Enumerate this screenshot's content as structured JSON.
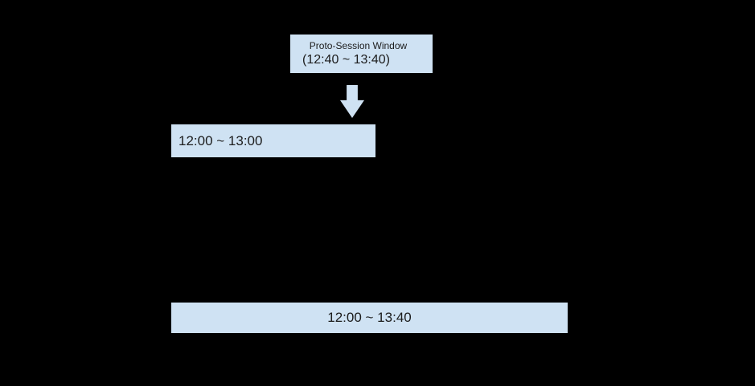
{
  "colors": {
    "background": "#000000",
    "box_fill": "#cfe2f3",
    "box_border": "#000000",
    "text": "#1c1c1c"
  },
  "icons": {
    "down_arrow": "⬇"
  },
  "proto_session_window": {
    "title": "Proto-Session Window",
    "range": "(12:40 ~ 13:40)"
  },
  "original_session": {
    "label": "12:00 ~ 13:00"
  },
  "extended_session": {
    "label": "12:00 ~ 13:40"
  }
}
